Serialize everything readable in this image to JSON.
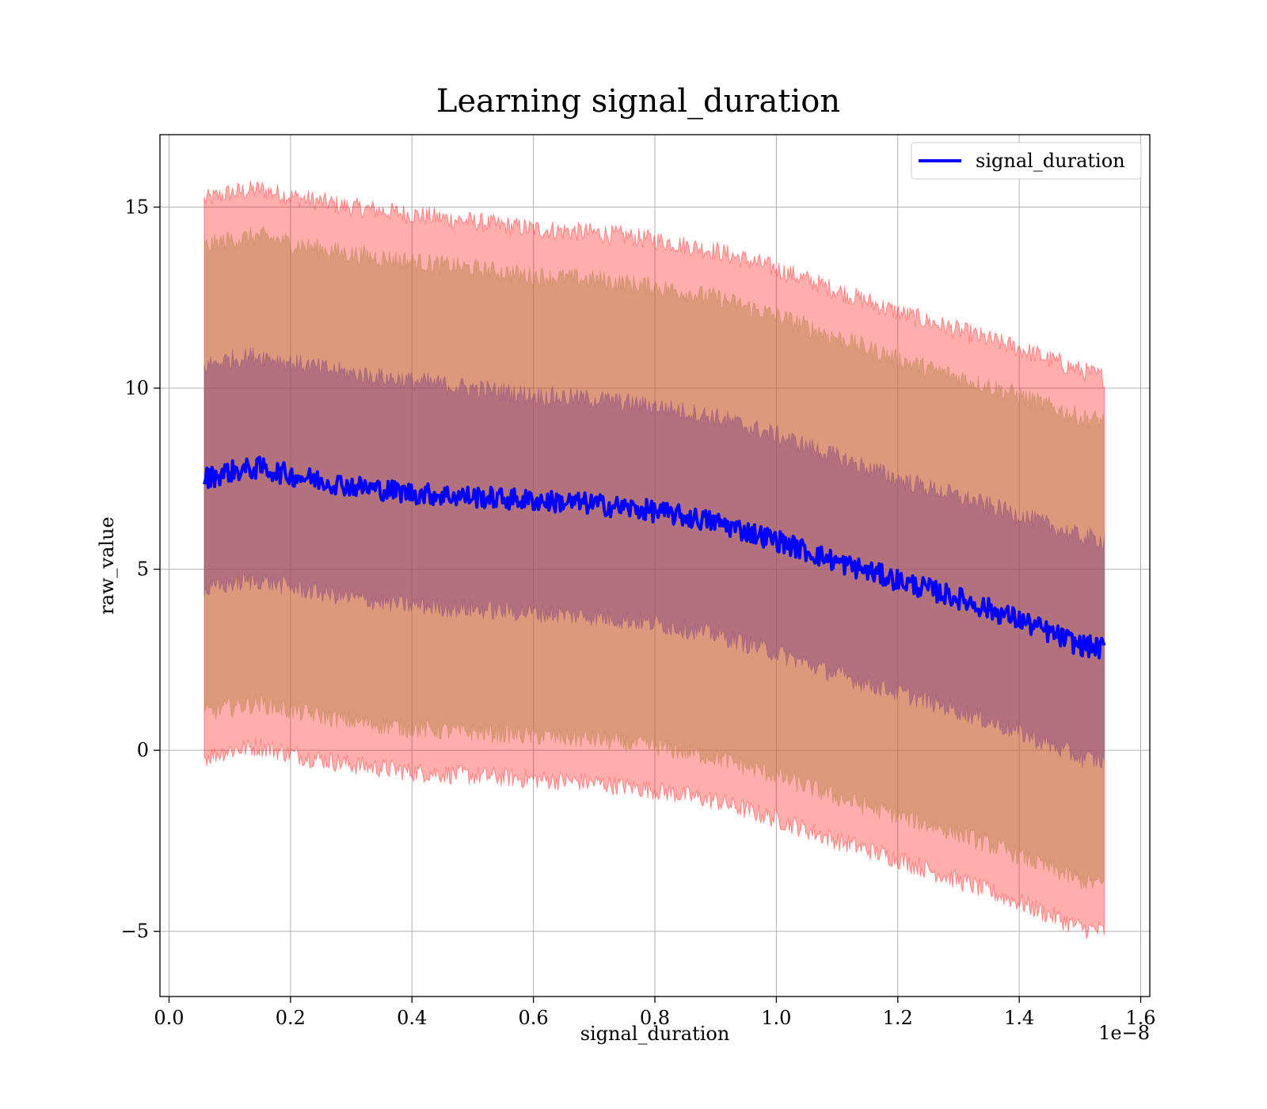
{
  "chart_data": {
    "type": "line",
    "title": "Learning signal_duration",
    "xlabel": "signal_duration",
    "ylabel": "raw_value",
    "x_offset_label": "1e−8",
    "x_scale": 1e-08,
    "xlim": [
      -0.015,
      1.615
    ],
    "ylim": [
      -6.8,
      17.0
    ],
    "x_ticks": [
      0.0,
      0.2,
      0.4,
      0.6,
      0.8,
      1.0,
      1.2,
      1.4,
      1.6
    ],
    "x_tick_labels": [
      "0.0",
      "0.2",
      "0.4",
      "0.6",
      "0.8",
      "1.0",
      "1.2",
      "1.4",
      "1.6"
    ],
    "y_ticks": [
      -5,
      0,
      5,
      10,
      15
    ],
    "y_tick_labels": [
      "−5",
      "0",
      "5",
      "10",
      "15"
    ],
    "grid": true,
    "legend_position": "top-right",
    "x": [
      0.058,
      0.1,
      0.15,
      0.2,
      0.3,
      0.4,
      0.5,
      0.6,
      0.7,
      0.8,
      0.9,
      1.0,
      1.1,
      1.2,
      1.3,
      1.4,
      1.5,
      1.54
    ],
    "series": [
      {
        "name": "signal_duration",
        "color": "#0000ff",
        "values": [
          7.5,
          7.7,
          7.8,
          7.6,
          7.3,
          7.1,
          7.0,
          6.9,
          6.8,
          6.6,
          6.3,
          5.8,
          5.2,
          4.7,
          4.2,
          3.6,
          2.9,
          2.8
        ]
      }
    ],
    "bands": [
      {
        "role": "outer",
        "fill": "#ff0000",
        "opacity": 0.32,
        "upper": [
          15.2,
          15.4,
          15.5,
          15.3,
          15.0,
          14.8,
          14.6,
          14.4,
          14.3,
          14.1,
          13.8,
          13.3,
          12.7,
          12.1,
          11.6,
          11.1,
          10.5,
          10.3
        ],
        "lower": [
          -0.2,
          0.0,
          0.1,
          -0.1,
          -0.4,
          -0.6,
          -0.7,
          -0.8,
          -0.9,
          -1.1,
          -1.4,
          -1.9,
          -2.5,
          -3.0,
          -3.6,
          -4.2,
          -4.9,
          -5.0
        ]
      },
      {
        "role": "middle",
        "fill": "#b38040",
        "opacity": 0.45,
        "upper": [
          13.9,
          14.1,
          14.2,
          14.0,
          13.7,
          13.5,
          13.3,
          13.1,
          13.0,
          12.8,
          12.5,
          12.0,
          11.4,
          10.8,
          10.3,
          9.8,
          9.2,
          9.1
        ],
        "lower": [
          1.0,
          1.2,
          1.3,
          1.1,
          0.8,
          0.6,
          0.5,
          0.4,
          0.3,
          0.1,
          -0.2,
          -0.7,
          -1.3,
          -1.8,
          -2.3,
          -2.9,
          -3.6,
          -3.7
        ]
      },
      {
        "role": "inner",
        "fill": "#804080",
        "opacity": 0.45,
        "upper": [
          10.6,
          10.8,
          10.9,
          10.7,
          10.4,
          10.2,
          10.0,
          9.8,
          9.7,
          9.5,
          9.2,
          8.7,
          8.1,
          7.5,
          7.0,
          6.5,
          5.9,
          5.8
        ],
        "lower": [
          4.4,
          4.6,
          4.7,
          4.5,
          4.2,
          4.0,
          3.9,
          3.8,
          3.7,
          3.5,
          3.2,
          2.7,
          2.1,
          1.6,
          1.1,
          0.5,
          -0.2,
          -0.3
        ]
      }
    ]
  }
}
